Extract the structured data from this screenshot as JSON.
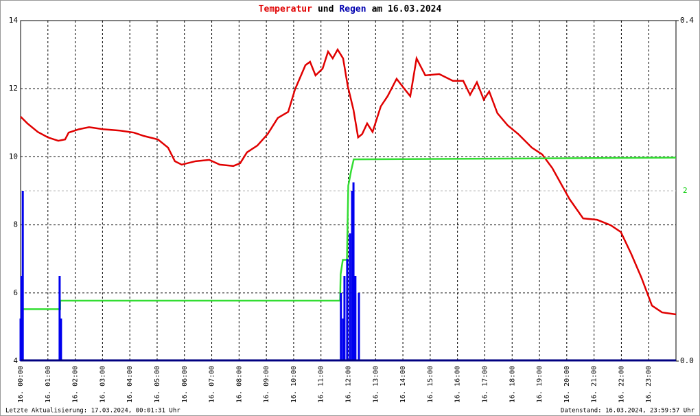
{
  "chart_data": {
    "type": "line",
    "title_parts": [
      {
        "text": "Temperatur",
        "color": "#e00000"
      },
      {
        "text": "und",
        "color": "#000000"
      },
      {
        "text": "Regen",
        "color": "#0000b0"
      },
      {
        "text": "am 16.03.2024",
        "color": "#000000"
      }
    ],
    "footer_left": "Letzte Aktualisierung: 17.03.2024, 00:01:31 Uhr",
    "footer_right": "Datenstand: 16.03.2024, 23:59:57 Uhr",
    "xlim": [
      0,
      24
    ],
    "xticks": [
      {
        "value": 0,
        "label": "16. 00:00"
      },
      {
        "value": 1,
        "label": "16. 01:00"
      },
      {
        "value": 2,
        "label": "16. 02:00"
      },
      {
        "value": 3,
        "label": "16. 03:00"
      },
      {
        "value": 4,
        "label": "16. 04:00"
      },
      {
        "value": 5,
        "label": "16. 05:00"
      },
      {
        "value": 6,
        "label": "16. 06:00"
      },
      {
        "value": 7,
        "label": "16. 07:00"
      },
      {
        "value": 8,
        "label": "16. 08:00"
      },
      {
        "value": 9,
        "label": "16. 09:00"
      },
      {
        "value": 10,
        "label": "16. 10:00"
      },
      {
        "value": 11,
        "label": "16. 11:00"
      },
      {
        "value": 12,
        "label": "16. 12:00"
      },
      {
        "value": 13,
        "label": "16. 13:00"
      },
      {
        "value": 14,
        "label": "16. 14:00"
      },
      {
        "value": 15,
        "label": "16. 15:00"
      },
      {
        "value": 16,
        "label": "16. 16:00"
      },
      {
        "value": 17,
        "label": "16. 17:00"
      },
      {
        "value": 18,
        "label": "16. 18:00"
      },
      {
        "value": 19,
        "label": "16. 19:00"
      },
      {
        "value": 20,
        "label": "16. 20:00"
      },
      {
        "value": 21,
        "label": "16. 21:00"
      },
      {
        "value": 22,
        "label": "16. 22:00"
      },
      {
        "value": 23,
        "label": "16. 23:00"
      }
    ],
    "ylim": [
      4,
      14
    ],
    "yticks": [
      4,
      6,
      8,
      10,
      12,
      14
    ],
    "y2lim": [
      0,
      0.4
    ],
    "y2ticks": [
      {
        "value": 0,
        "label": "0.0"
      },
      0.4
    ],
    "y3lim": [
      0,
      4
    ],
    "y3ticks": [
      2
    ],
    "y3color": "#00cc00",
    "grid": true,
    "series": [
      {
        "type": "line",
        "color": "#e00000",
        "axis": "y",
        "x": [
          0,
          0.25,
          0.63,
          1.0,
          1.38,
          1.63,
          1.76,
          2.14,
          2.51,
          3.02,
          3.64,
          4.15,
          4.52,
          5.03,
          5.4,
          5.65,
          5.9,
          6.41,
          6.91,
          7.29,
          7.79,
          8.04,
          8.29,
          8.67,
          9.05,
          9.42,
          9.8,
          10.05,
          10.43,
          10.6,
          10.8,
          11.06,
          11.26,
          11.43,
          11.61,
          11.81,
          11.98,
          12.19,
          12.36,
          12.51,
          12.69,
          12.89,
          13.19,
          13.44,
          13.77,
          14.07,
          14.27,
          14.5,
          14.82,
          15.33,
          15.83,
          16.21,
          16.46,
          16.71,
          16.96,
          17.16,
          17.46,
          17.84,
          18.22,
          18.72,
          19.1,
          19.47,
          20.1,
          20.6,
          21.11,
          21.61,
          21.98,
          22.36,
          22.74,
          23.12,
          23.49,
          24.0
        ],
        "values": [
          11.18,
          10.98,
          10.73,
          10.57,
          10.47,
          10.51,
          10.71,
          10.81,
          10.87,
          10.81,
          10.77,
          10.71,
          10.61,
          10.51,
          10.27,
          9.87,
          9.77,
          9.87,
          9.91,
          9.77,
          9.73,
          9.81,
          10.13,
          10.33,
          10.67,
          11.14,
          11.32,
          11.98,
          12.69,
          12.79,
          12.39,
          12.59,
          13.09,
          12.89,
          13.15,
          12.89,
          12.08,
          11.38,
          10.57,
          10.67,
          10.98,
          10.73,
          11.48,
          11.78,
          12.29,
          11.98,
          11.78,
          12.89,
          12.39,
          12.43,
          12.23,
          12.23,
          11.82,
          12.19,
          11.68,
          11.92,
          11.28,
          10.92,
          10.67,
          10.27,
          10.07,
          9.67,
          8.76,
          8.19,
          8.15,
          7.99,
          7.79,
          7.15,
          6.44,
          5.63,
          5.43,
          5.37
        ]
      },
      {
        "type": "line",
        "color": "#33dd33",
        "axis": "y3",
        "x": [
          0.08,
          1.45,
          1.45,
          11.7,
          11.72,
          11.8,
          11.95,
          12.0,
          12.1,
          12.2,
          24
        ],
        "values": [
          0.61,
          0.61,
          0.71,
          0.71,
          1.02,
          1.19,
          1.19,
          2.06,
          2.23,
          2.37,
          2.39
        ]
      },
      {
        "type": "bar",
        "color": "#0000ee",
        "axis": "y2",
        "x": [
          0.0,
          0.03,
          0.08,
          1.43,
          1.48,
          11.73,
          11.81,
          11.86,
          11.96,
          12.06,
          12.14,
          12.19,
          12.26,
          12.39
        ],
        "values": [
          0.05,
          0.1,
          0.2,
          0.1,
          0.05,
          0.08,
          0.05,
          0.1,
          0.12,
          0.15,
          0.2,
          0.21,
          0.1,
          0.08
        ]
      }
    ]
  }
}
